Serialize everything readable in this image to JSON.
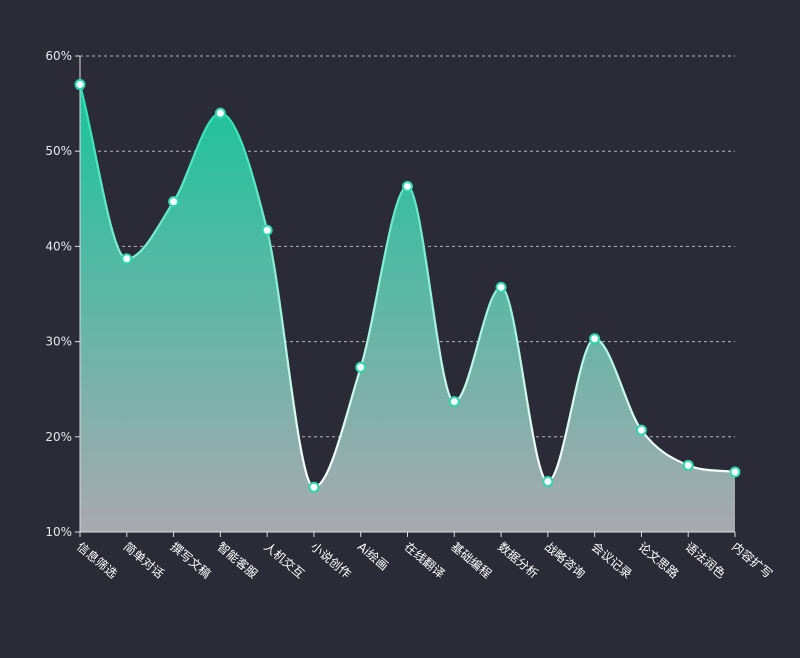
{
  "chart_data": {
    "type": "area",
    "categories": [
      "信息筛选",
      "简单对话",
      "撰写文稿",
      "智能客服",
      "人机交互",
      "小说创作",
      "Ai绘画",
      "在线翻译",
      "基础编程",
      "数据分析",
      "战略咨询",
      "会议记录",
      "论文思路",
      "语法润色",
      "内容扩写"
    ],
    "series": [
      {
        "values": [
          57,
          38.7,
          44.7,
          54,
          41.7,
          14.7,
          27.3,
          46.3,
          23.7,
          35.7,
          15.3,
          30.3,
          20.7,
          17,
          16.3
        ]
      }
    ],
    "ylim": [
      10,
      60
    ],
    "yticks": [
      10,
      20,
      30,
      40,
      50,
      60
    ],
    "ytick_suffix": "%",
    "grid": true,
    "grid_style": "dashed",
    "smooth": true,
    "colors": {
      "background": "#2b2b38",
      "area_top": "#18c49b",
      "area_bottom": "#a9a9b0",
      "line_top": "#22e0b0",
      "line_bottom": "#ffffff",
      "marker_fill": "#ffffff",
      "marker_stroke": "#2fd6b0",
      "grid": "#cfcfd6",
      "axis": "#dcdce2",
      "text": "#ffffff"
    }
  }
}
